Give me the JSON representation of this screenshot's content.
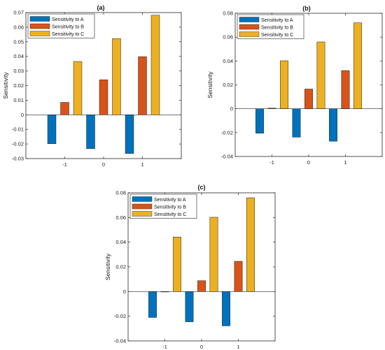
{
  "figure": {
    "panel_titles": [
      "(a)",
      "(b)",
      "(c)"
    ]
  },
  "chart_data": [
    {
      "type": "bar",
      "title": "(a)",
      "xlabel": "",
      "ylabel": "Sensitivity",
      "categories": [
        "-1",
        "0",
        "1"
      ],
      "ylim": [
        -0.03,
        0.07
      ],
      "yticks": [
        -0.03,
        -0.02,
        -0.01,
        0,
        0.01,
        0.02,
        0.03,
        0.04,
        0.05,
        0.06,
        0.07
      ],
      "ytick_labels": [
        "-0.03",
        "-0.02",
        "-0.01",
        "0",
        "0.01",
        "0.02",
        "0.03",
        "0.04",
        "0.05",
        "0.06",
        "0.07"
      ],
      "grid": false,
      "legend": "top-left",
      "series": [
        {
          "name": "Sensitivity to A",
          "color": "#0072BD",
          "values": [
            -0.0198,
            -0.0232,
            -0.0265
          ]
        },
        {
          "name": "Sensitivity to B",
          "color": "#D95319",
          "values": [
            0.0085,
            0.024,
            0.0398
          ]
        },
        {
          "name": "Sensitivity to C",
          "color": "#EDB120",
          "values": [
            0.0365,
            0.0522,
            0.0682
          ]
        }
      ]
    },
    {
      "type": "bar",
      "title": "(b)",
      "xlabel": "",
      "ylabel": "Sensitivity",
      "categories": [
        "-1",
        "0",
        "1"
      ],
      "ylim": [
        -0.04,
        0.08
      ],
      "yticks": [
        -0.04,
        -0.02,
        0,
        0.02,
        0.04,
        0.06,
        0.08
      ],
      "ytick_labels": [
        "-0.04",
        "-0.02",
        "0",
        "0.02",
        "0.04",
        "0.06",
        "0.08"
      ],
      "grid": false,
      "legend": "top-left",
      "series": [
        {
          "name": "Sensitivity to A",
          "color": "#0072BD",
          "values": [
            -0.0205,
            -0.0238,
            -0.0272
          ]
        },
        {
          "name": "Sensitivity to B",
          "color": "#D95319",
          "values": [
            0.0005,
            0.0165,
            0.032
          ]
        },
        {
          "name": "Sensitivity to C",
          "color": "#EDB120",
          "values": [
            0.0402,
            0.056,
            0.072
          ]
        }
      ]
    },
    {
      "type": "bar",
      "title": "(c)",
      "xlabel": "",
      "ylabel": "Sensitivity",
      "categories": [
        "-1",
        "0",
        "1"
      ],
      "ylim": [
        -0.04,
        0.08
      ],
      "yticks": [
        -0.04,
        -0.02,
        0,
        0.02,
        0.04,
        0.06,
        0.08
      ],
      "ytick_labels": [
        "-0.04",
        "-0.02",
        "0",
        "0.02",
        "0.04",
        "0.06",
        "0.08"
      ],
      "grid": false,
      "legend": "top-left",
      "series": [
        {
          "name": "Sensitivity to A",
          "color": "#0072BD",
          "values": [
            -0.021,
            -0.0245,
            -0.0278
          ]
        },
        {
          "name": "Sensitivity to B",
          "color": "#D95319",
          "values": [
            0.0,
            0.0088,
            0.0245
          ]
        },
        {
          "name": "Sensitivity to C",
          "color": "#EDB120",
          "values": [
            0.0442,
            0.0602,
            0.076
          ]
        }
      ]
    }
  ]
}
